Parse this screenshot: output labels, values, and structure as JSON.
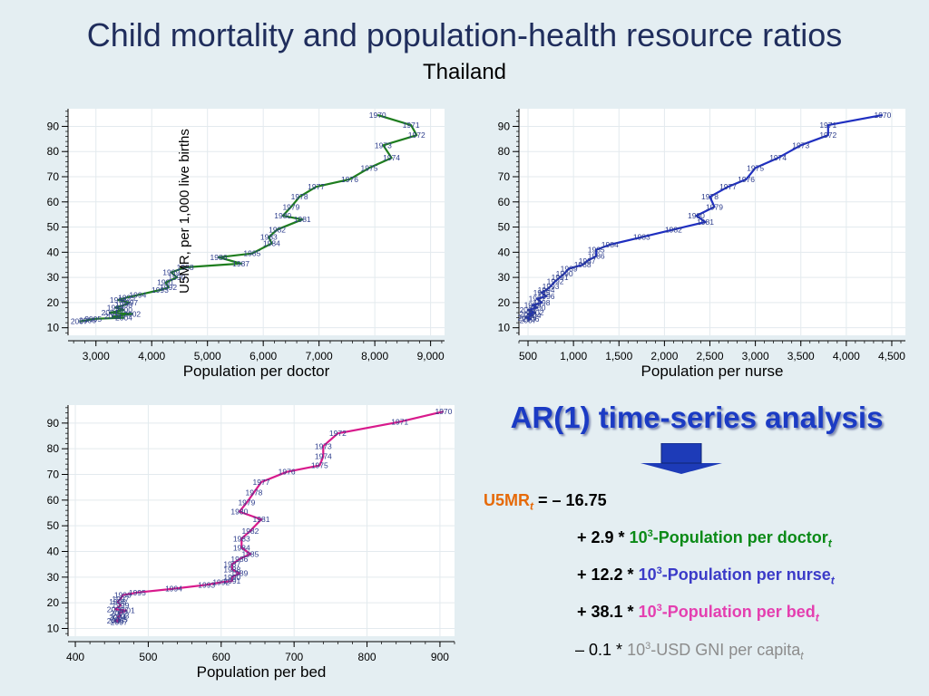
{
  "title": "Child mortality and population-health resource ratios",
  "subtitle": "Thailand",
  "chart_data": [
    {
      "type": "line",
      "xlabel": "Population per doctor",
      "ylabel": "U5MR, per 1,000 live births",
      "xticks": [
        "3,000",
        "4,000",
        "5,000",
        "6,000",
        "7,000",
        "8,000",
        "9,000"
      ],
      "xtick_values": [
        3000,
        4000,
        5000,
        6000,
        7000,
        8000,
        9000
      ],
      "yticks": [
        10,
        20,
        30,
        40,
        50,
        60,
        70,
        80,
        90
      ],
      "xlim": [
        2500,
        9250
      ],
      "ylim": [
        7,
        97
      ],
      "color": "#1e7d1e",
      "points": [
        {
          "label": "1970",
          "x": 8050,
          "y": 94.5
        },
        {
          "label": "1971",
          "x": 8650,
          "y": 90.5
        },
        {
          "label": "1972",
          "x": 8750,
          "y": 86.5
        },
        {
          "label": "1973",
          "x": 8150,
          "y": 82.5
        },
        {
          "label": "1974",
          "x": 8300,
          "y": 77.5
        },
        {
          "label": "1975",
          "x": 7900,
          "y": 73.5
        },
        {
          "label": "1976",
          "x": 7550,
          "y": 69
        },
        {
          "label": "1977",
          "x": 6950,
          "y": 66
        },
        {
          "label": "1978",
          "x": 6650,
          "y": 62
        },
        {
          "label": "1979",
          "x": 6500,
          "y": 58
        },
        {
          "label": "1980",
          "x": 6350,
          "y": 54.5
        },
        {
          "label": "1981",
          "x": 6700,
          "y": 53
        },
        {
          "label": "1982",
          "x": 6250,
          "y": 49
        },
        {
          "label": "1983",
          "x": 6100,
          "y": 46
        },
        {
          "label": "1984",
          "x": 6150,
          "y": 43.5
        },
        {
          "label": "1985",
          "x": 5800,
          "y": 39.5
        },
        {
          "label": "1986",
          "x": 5200,
          "y": 38
        },
        {
          "label": "1987",
          "x": 5600,
          "y": 35.5
        },
        {
          "label": "1988",
          "x": 4600,
          "y": 34
        },
        {
          "label": "1989",
          "x": 4350,
          "y": 32
        },
        {
          "label": "1990",
          "x": 4450,
          "y": 30
        },
        {
          "label": "1991",
          "x": 4250,
          "y": 28
        },
        {
          "label": "1992",
          "x": 4300,
          "y": 26
        },
        {
          "label": "1993",
          "x": 4150,
          "y": 25
        },
        {
          "label": "1994",
          "x": 3750,
          "y": 23
        },
        {
          "label": "1995",
          "x": 3550,
          "y": 22
        },
        {
          "label": "1996",
          "x": 3400,
          "y": 21
        },
        {
          "label": "1997",
          "x": 3600,
          "y": 20
        },
        {
          "label": "1998",
          "x": 3500,
          "y": 19
        },
        {
          "label": "1999",
          "x": 3350,
          "y": 18
        },
        {
          "label": "2000",
          "x": 3500,
          "y": 17
        },
        {
          "label": "2001",
          "x": 3250,
          "y": 16
        },
        {
          "label": "2002",
          "x": 3650,
          "y": 15.5
        },
        {
          "label": "2003",
          "x": 3300,
          "y": 14.5
        },
        {
          "label": "2004",
          "x": 3500,
          "y": 14
        },
        {
          "label": "2005",
          "x": 2950,
          "y": 13.5
        },
        {
          "label": "2006",
          "x": 2850,
          "y": 13
        },
        {
          "label": "2007",
          "x": 2700,
          "y": 12.5
        }
      ]
    },
    {
      "type": "line",
      "xlabel": "Population per nurse",
      "ylabel": "",
      "xticks": [
        "500",
        "1,000",
        "1,500",
        "2,000",
        "2,500",
        "3,000",
        "3,500",
        "4,000",
        "4,500"
      ],
      "xtick_values": [
        500,
        1000,
        1500,
        2000,
        2500,
        3000,
        3500,
        4000,
        4500
      ],
      "yticks": [
        10,
        20,
        30,
        40,
        50,
        60,
        70,
        80,
        90
      ],
      "xlim": [
        400,
        4650
      ],
      "ylim": [
        7,
        97
      ],
      "color": "#1f2fc0",
      "points": [
        {
          "label": "1970",
          "x": 4400,
          "y": 94.5
        },
        {
          "label": "1971",
          "x": 3800,
          "y": 90.5
        },
        {
          "label": "1972",
          "x": 3800,
          "y": 86.5
        },
        {
          "label": "1973",
          "x": 3500,
          "y": 82.5
        },
        {
          "label": "1974",
          "x": 3250,
          "y": 77.5
        },
        {
          "label": "1975",
          "x": 3000,
          "y": 73.5
        },
        {
          "label": "1976",
          "x": 2900,
          "y": 69
        },
        {
          "label": "1977",
          "x": 2700,
          "y": 66
        },
        {
          "label": "1978",
          "x": 2500,
          "y": 62
        },
        {
          "label": "1979",
          "x": 2550,
          "y": 58
        },
        {
          "label": "1980",
          "x": 2350,
          "y": 54.5
        },
        {
          "label": "1981",
          "x": 2450,
          "y": 52
        },
        {
          "label": "1982",
          "x": 2100,
          "y": 49
        },
        {
          "label": "1983",
          "x": 1750,
          "y": 46
        },
        {
          "label": "1984",
          "x": 1400,
          "y": 43
        },
        {
          "label": "1985",
          "x": 1250,
          "y": 41
        },
        {
          "label": "1986",
          "x": 1250,
          "y": 38.5
        },
        {
          "label": "1987",
          "x": 1150,
          "y": 36.5
        },
        {
          "label": "1988",
          "x": 1100,
          "y": 35
        },
        {
          "label": "1989",
          "x": 950,
          "y": 33.5
        },
        {
          "label": "1990",
          "x": 900,
          "y": 31.5
        },
        {
          "label": "1991",
          "x": 850,
          "y": 30
        },
        {
          "label": "1992",
          "x": 800,
          "y": 28.5
        },
        {
          "label": "1993",
          "x": 750,
          "y": 26.5
        },
        {
          "label": "1994",
          "x": 700,
          "y": 25
        },
        {
          "label": "1995",
          "x": 650,
          "y": 24
        },
        {
          "label": "1996",
          "x": 700,
          "y": 22.5
        },
        {
          "label": "1997",
          "x": 600,
          "y": 21.5
        },
        {
          "label": "1998",
          "x": 650,
          "y": 20
        },
        {
          "label": "1999",
          "x": 550,
          "y": 19
        },
        {
          "label": "2000",
          "x": 600,
          "y": 18
        },
        {
          "label": "2001",
          "x": 500,
          "y": 17
        },
        {
          "label": "2002",
          "x": 580,
          "y": 16
        },
        {
          "label": "2003",
          "x": 500,
          "y": 15.5
        },
        {
          "label": "2004",
          "x": 550,
          "y": 15
        },
        {
          "label": "2005",
          "x": 480,
          "y": 14
        },
        {
          "label": "2006",
          "x": 530,
          "y": 13.5
        },
        {
          "label": "2007",
          "x": 500,
          "y": 13
        }
      ]
    },
    {
      "type": "line",
      "xlabel": "Population per bed",
      "ylabel": "",
      "xticks": [
        "400",
        "500",
        "600",
        "700",
        "800",
        "900"
      ],
      "xtick_values": [
        400,
        500,
        600,
        700,
        800,
        900
      ],
      "yticks": [
        10,
        20,
        30,
        40,
        50,
        60,
        70,
        80,
        90
      ],
      "xlim": [
        390,
        920
      ],
      "ylim": [
        7,
        97
      ],
      "color": "#d81a8c",
      "points": [
        {
          "label": "1970",
          "x": 905,
          "y": 94.5
        },
        {
          "label": "1971",
          "x": 845,
          "y": 90.5
        },
        {
          "label": "1972",
          "x": 760,
          "y": 86
        },
        {
          "label": "1973",
          "x": 740,
          "y": 81
        },
        {
          "label": "1974",
          "x": 740,
          "y": 77
        },
        {
          "label": "1975",
          "x": 735,
          "y": 73.5
        },
        {
          "label": "1976",
          "x": 690,
          "y": 71
        },
        {
          "label": "1977",
          "x": 655,
          "y": 67
        },
        {
          "label": "1978",
          "x": 645,
          "y": 63
        },
        {
          "label": "1979",
          "x": 635,
          "y": 59
        },
        {
          "label": "1980",
          "x": 625,
          "y": 55.5
        },
        {
          "label": "1981",
          "x": 655,
          "y": 52.5
        },
        {
          "label": "1982",
          "x": 640,
          "y": 48
        },
        {
          "label": "1983",
          "x": 628,
          "y": 45
        },
        {
          "label": "1984",
          "x": 628,
          "y": 41.5
        },
        {
          "label": "1985",
          "x": 640,
          "y": 39
        },
        {
          "label": "1986",
          "x": 625,
          "y": 37
        },
        {
          "label": "1987",
          "x": 615,
          "y": 35
        },
        {
          "label": "1988",
          "x": 615,
          "y": 33
        },
        {
          "label": "1989",
          "x": 625,
          "y": 31.5
        },
        {
          "label": "1990",
          "x": 615,
          "y": 30
        },
        {
          "label": "1991",
          "x": 615,
          "y": 28.5
        },
        {
          "label": "1992",
          "x": 600,
          "y": 28
        },
        {
          "label": "1993",
          "x": 580,
          "y": 27
        },
        {
          "label": "1994",
          "x": 535,
          "y": 25.5
        },
        {
          "label": "1995",
          "x": 485,
          "y": 24
        },
        {
          "label": "1996",
          "x": 465,
          "y": 23
        },
        {
          "label": "1997",
          "x": 462,
          "y": 21.5
        },
        {
          "label": "1998",
          "x": 458,
          "y": 20.5
        },
        {
          "label": "1999",
          "x": 462,
          "y": 19
        },
        {
          "label": "2000",
          "x": 455,
          "y": 17.5
        },
        {
          "label": "2001",
          "x": 470,
          "y": 17
        },
        {
          "label": "2002",
          "x": 460,
          "y": 16
        },
        {
          "label": "2003",
          "x": 462,
          "y": 15
        },
        {
          "label": "2004",
          "x": 458,
          "y": 14.5
        },
        {
          "label": "2005",
          "x": 460,
          "y": 13.5
        },
        {
          "label": "2006",
          "x": 455,
          "y": 13
        },
        {
          "label": "2007",
          "x": 460,
          "y": 12.5
        }
      ]
    }
  ],
  "ar": {
    "title": "AR(1) time-series analysis",
    "dep": "U5MR",
    "sub_t": "t",
    "eq1": "= – 16.75",
    "t1_coef": "+ 2.9 *",
    "t1_pow_base": "10",
    "t1_pow_exp": "3",
    "t1_var": "-Population per doctor",
    "t2_coef": "+ 12.2 *",
    "t2_pow_base": "10",
    "t2_pow_exp": "3",
    "t2_var": "-Population per nurse",
    "t3_coef": "+ 38.1 *",
    "t3_pow_base": "10",
    "t3_pow_exp": "3",
    "t3_var": "-Population per bed",
    "t4_coef": "– 0.1 *",
    "t4_pow_base": "10",
    "t4_pow_exp": "3",
    "t4_var": "-USD GNI per capita",
    "colors": {
      "dep": "#e66a0a",
      "doctor": "#0b8a17",
      "nurse": "#3b3bc8",
      "bed": "#e43fb0",
      "gni": "#8c8c8c",
      "title": "#1b3bc4"
    }
  }
}
